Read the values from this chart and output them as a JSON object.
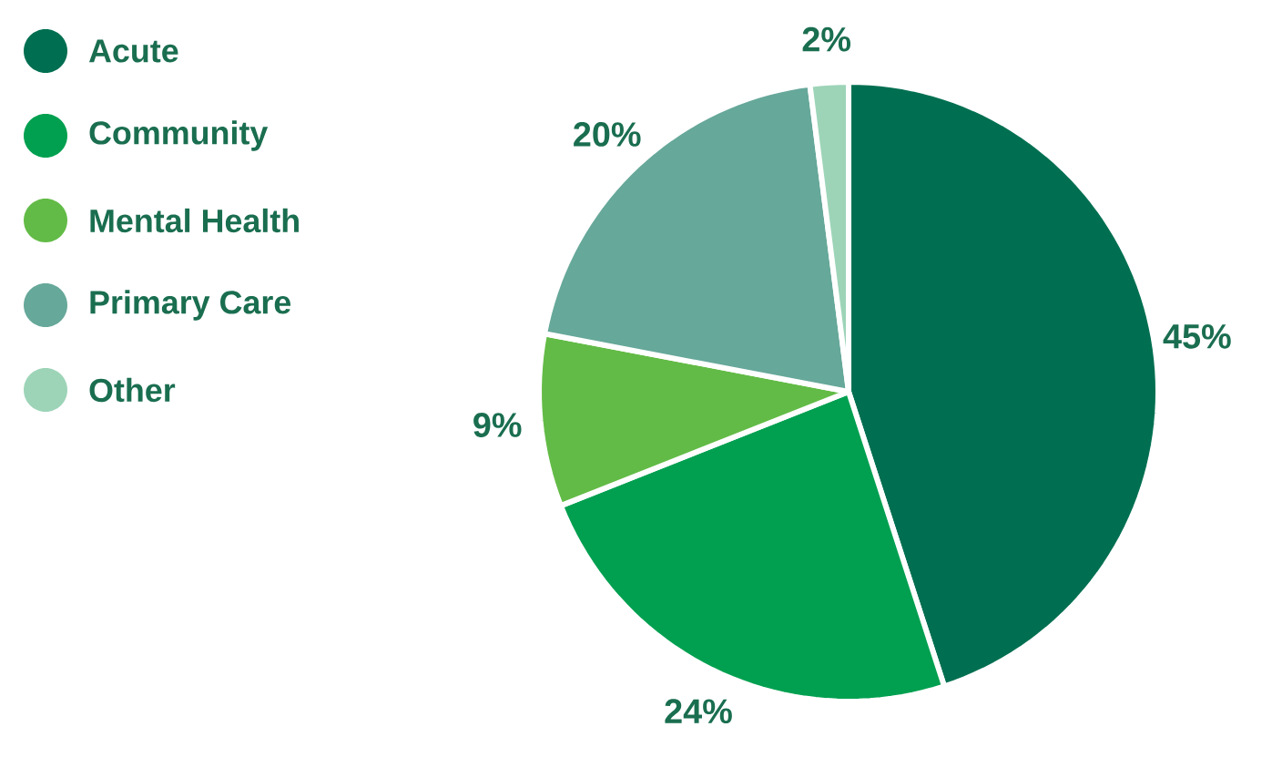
{
  "chart_data": {
    "type": "pie",
    "categories": [
      "Acute",
      "Community",
      "Mental Health",
      "Primary Care",
      "Other"
    ],
    "values": [
      45,
      24,
      9,
      20,
      2
    ],
    "value_labels": [
      "45%",
      "24%",
      "9%",
      "20%",
      "2%"
    ],
    "colors": [
      "#006f51",
      "#00a050",
      "#62bb46",
      "#66a89a",
      "#9dd4b8"
    ],
    "legend": "left"
  }
}
